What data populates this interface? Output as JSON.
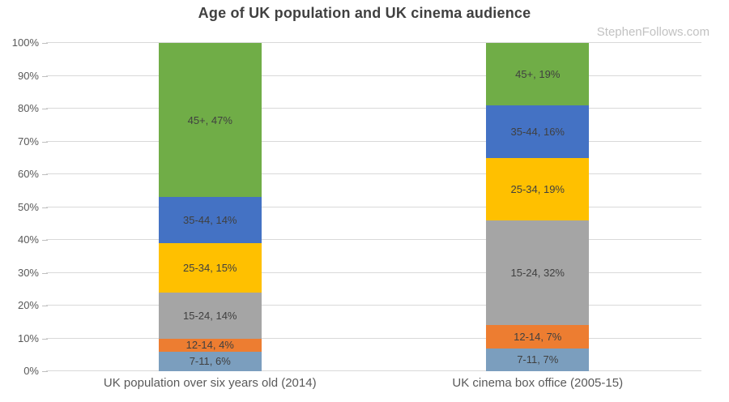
{
  "title": "Age of UK population and UK cinema audience",
  "watermark": "StephenFollows.com",
  "colors": {
    "background": "#ffffff",
    "title_text": "#404040",
    "watermark_text": "#c2c2c2",
    "axis_text": "#595959",
    "segment_label_text": "#404040",
    "gridline": "#d9d9d9",
    "tick_mark": "#bfbfbf"
  },
  "chart_data": {
    "type": "bar",
    "stacked": true,
    "stacked_to_100_percent": true,
    "title": "Age of UK population and UK cinema audience",
    "xlabel": "",
    "ylabel": "",
    "ylim": [
      0,
      100
    ],
    "y_tick_step": 10,
    "y_tick_suffix": "%",
    "grid": true,
    "legend": "none (labels inside segments)",
    "categories": [
      "UK population over six years old (2014)",
      "UK cinema box office (2005-15)"
    ],
    "series": [
      {
        "name": "7-11",
        "color": "#7b9ebe",
        "values": [
          6,
          7
        ]
      },
      {
        "name": "12-14",
        "color": "#ed7d31",
        "values": [
          4,
          7
        ]
      },
      {
        "name": "15-24",
        "color": "#a5a5a5",
        "values": [
          14,
          32
        ]
      },
      {
        "name": "25-34",
        "color": "#ffc000",
        "values": [
          15,
          19
        ]
      },
      {
        "name": "35-44",
        "color": "#4472c4",
        "values": [
          14,
          16
        ]
      },
      {
        "name": "45+",
        "color": "#70ad47",
        "values": [
          47,
          19
        ]
      }
    ],
    "segment_labels": [
      [
        "7-11, 6%",
        "12-14, 4%",
        "15-24, 14%",
        "25-34, 15%",
        "35-44, 14%",
        "45+, 47%"
      ],
      [
        "7-11, 7%",
        "12-14, 7%",
        "15-24, 32%",
        "25-34, 19%",
        "35-44, 16%",
        "45+, 19%"
      ]
    ]
  }
}
